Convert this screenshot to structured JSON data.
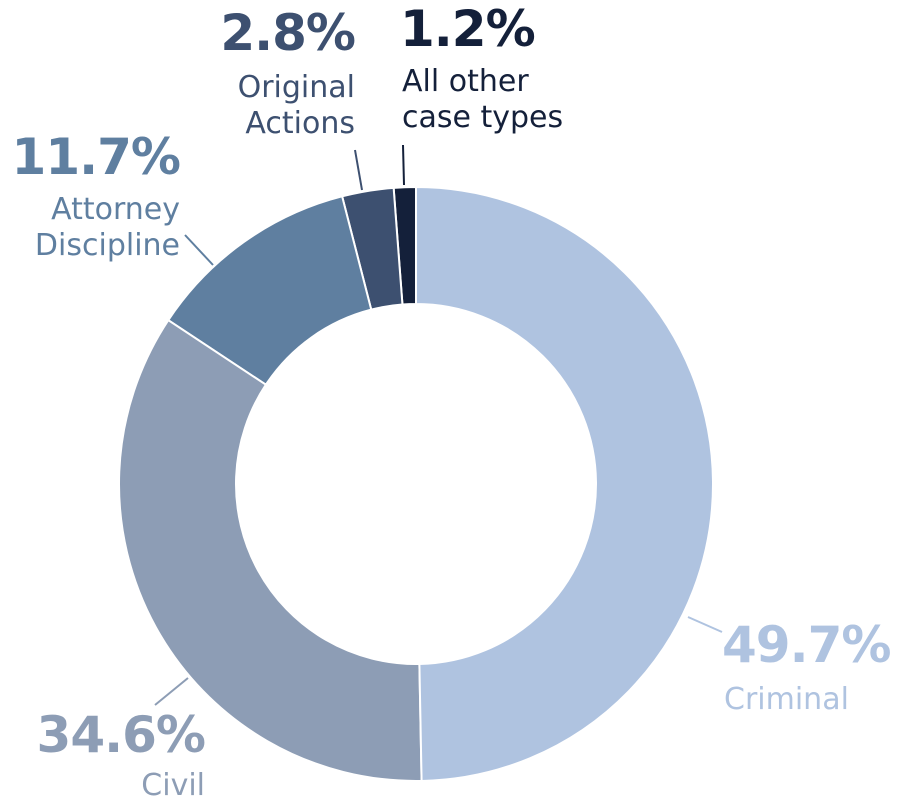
{
  "chart_data": {
    "type": "donut",
    "categories": [
      "Criminal",
      "Civil",
      "Attorney Discipline",
      "Original Actions",
      "All other case types"
    ],
    "values": [
      49.7,
      34.6,
      11.7,
      2.8,
      1.2
    ],
    "value_labels": [
      "49.7%",
      "34.6%",
      "11.7%",
      "2.8%",
      "1.2%"
    ],
    "colors": [
      "#afc3e0",
      "#8d9db5",
      "#5f7fa0",
      "#3d5070",
      "#14203a"
    ]
  }
}
